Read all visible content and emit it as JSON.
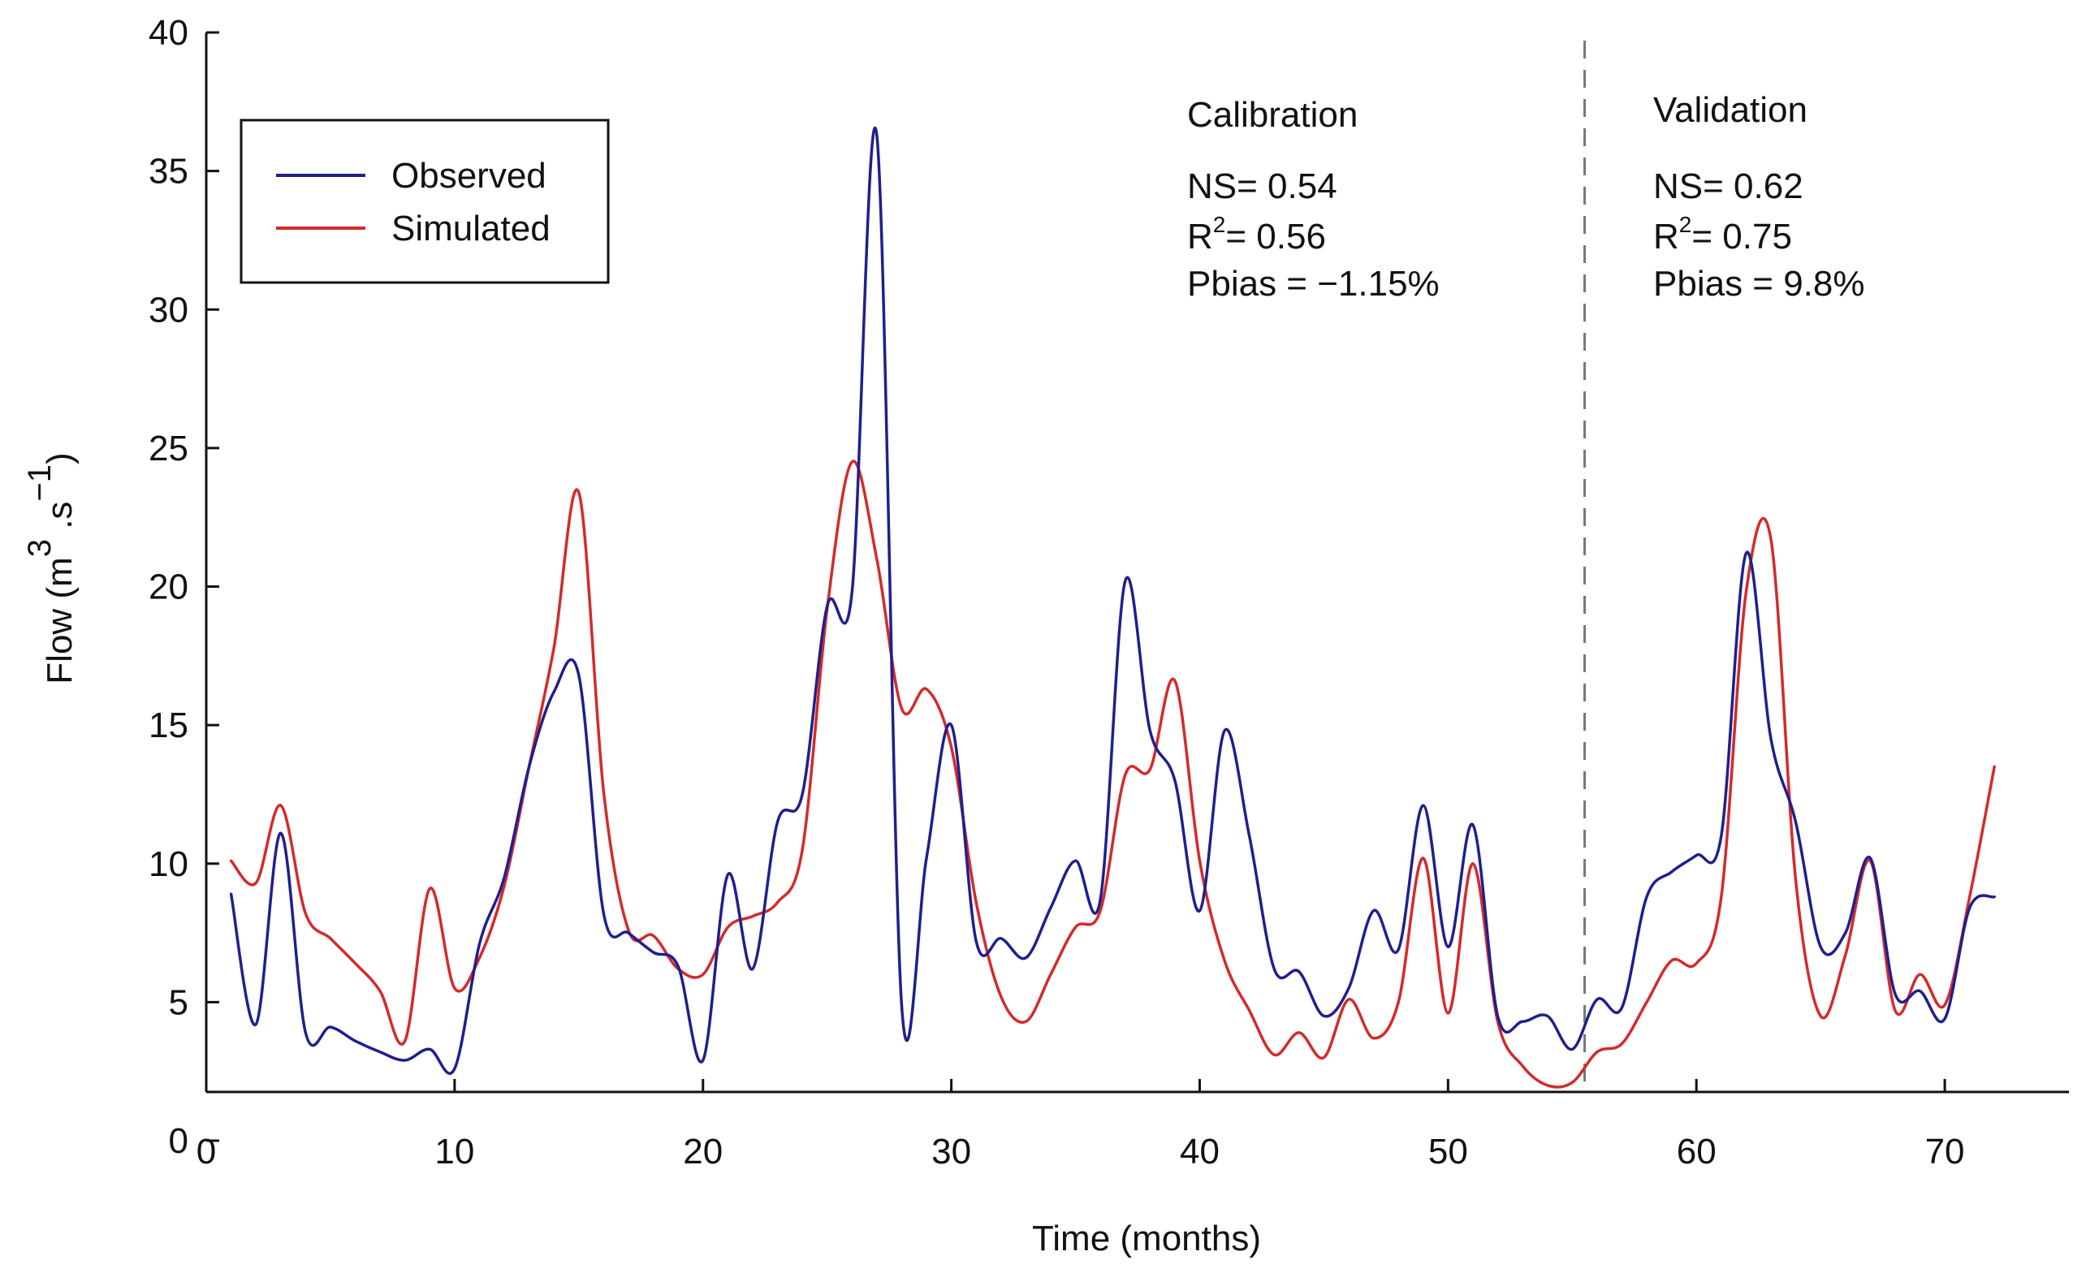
{
  "chart_data": {
    "type": "line",
    "title": "",
    "xlabel": "Time (months)",
    "ylabel": "Flow (m³ .s⁻¹)",
    "ylabel_parts": {
      "prefix": "Flow (m",
      "sup1": "3",
      "mid": " .s",
      "sup2": "−1",
      "suffix": ")"
    },
    "xlim": [
      0,
      75
    ],
    "ylim": [
      0,
      40
    ],
    "xticks": [
      0,
      10,
      20,
      30,
      40,
      50,
      60,
      70
    ],
    "yticks": [
      0,
      5,
      10,
      15,
      20,
      25,
      30,
      35,
      40
    ],
    "split_x": 55.5,
    "legend": {
      "placement": "top-left",
      "entries": [
        {
          "name": "Observed",
          "color": "#1f1f8f"
        },
        {
          "name": "Simulated",
          "color": "#d42a2a"
        }
      ]
    },
    "annotations": {
      "calibration": {
        "title": "Calibration",
        "ns": "NS= 0.54",
        "r2_prefix": "R",
        "r2_sup": "2",
        "r2_value": "= 0.56",
        "pbias": "Pbias = −1.15%"
      },
      "validation": {
        "title": "Validation",
        "ns": "NS= 0.62",
        "r2_prefix": "R",
        "r2_sup": "2",
        "r2_value": "= 0.75",
        "pbias": "Pbias = 9.8%"
      }
    },
    "series": [
      {
        "name": "Observed",
        "color": "#1f1f8f",
        "x": [
          1,
          2,
          3,
          4,
          5,
          6,
          7,
          8,
          9,
          10,
          11,
          12,
          13,
          14,
          15,
          16,
          17,
          18,
          19,
          20,
          21,
          22,
          23,
          24,
          25,
          26,
          27,
          28,
          29,
          30,
          31,
          32,
          33,
          34,
          35,
          36,
          37,
          38,
          39,
          40,
          41,
          42,
          43,
          44,
          45,
          46,
          47,
          48,
          49,
          50,
          51,
          52,
          53,
          54,
          55,
          56,
          57,
          58,
          59,
          60,
          61,
          62,
          63,
          64,
          65,
          66,
          67,
          68,
          69,
          70,
          71,
          72
        ],
        "values": [
          8.9,
          4.2,
          11.1,
          3.9,
          4.1,
          3.6,
          3.2,
          2.9,
          3.3,
          2.6,
          7.1,
          9.5,
          13.5,
          16.2,
          16.8,
          8.2,
          7.5,
          6.8,
          6.3,
          2.9,
          9.6,
          6.2,
          11.5,
          12.5,
          19.3,
          19.8,
          36.3,
          4.9,
          10.2,
          15.0,
          7.2,
          7.3,
          6.6,
          8.4,
          10.1,
          8.7,
          20.2,
          14.8,
          13.0,
          8.3,
          14.8,
          11.0,
          6.2,
          6.1,
          4.5,
          5.5,
          8.3,
          6.9,
          12.1,
          7.0,
          11.4,
          4.5,
          4.3,
          4.5,
          3.3,
          5.1,
          4.8,
          8.8,
          9.7,
          10.3,
          11.0,
          21.2,
          14.5,
          11.5,
          7.0,
          7.5,
          10.2,
          5.3,
          5.4,
          4.4,
          8.4,
          8.8
        ]
      },
      {
        "name": "Simulated",
        "color": "#d42a2a",
        "x": [
          1,
          2,
          3,
          4,
          5,
          6,
          7,
          8,
          9,
          10,
          11,
          12,
          13,
          14,
          15,
          16,
          17,
          18,
          19,
          20,
          21,
          22,
          23,
          24,
          25,
          26,
          27,
          28,
          29,
          30,
          31,
          32,
          33,
          34,
          35,
          36,
          37,
          38,
          39,
          40,
          41,
          42,
          43,
          44,
          45,
          46,
          47,
          48,
          49,
          50,
          51,
          52,
          53,
          54,
          55,
          56,
          57,
          58,
          59,
          60,
          61,
          62,
          63,
          64,
          65,
          66,
          67,
          68,
          69,
          70,
          71,
          72
        ],
        "values": [
          10.1,
          9.3,
          12.1,
          8.2,
          7.3,
          6.4,
          5.4,
          3.6,
          9.1,
          5.5,
          6.6,
          9.2,
          13.5,
          17.8,
          23.4,
          12.6,
          7.6,
          7.4,
          6.2,
          6.0,
          7.7,
          8.1,
          8.6,
          10.5,
          19.2,
          24.5,
          21.0,
          15.6,
          16.3,
          14.2,
          8.6,
          5.2,
          4.3,
          6.0,
          7.7,
          8.3,
          13.2,
          13.4,
          16.6,
          10.1,
          6.5,
          4.7,
          3.1,
          3.9,
          3.0,
          5.1,
          3.7,
          5.0,
          10.2,
          4.6,
          10.0,
          4.3,
          2.7,
          2.0,
          2.1,
          3.2,
          3.5,
          5.0,
          6.5,
          6.4,
          8.8,
          19.8,
          21.7,
          9.4,
          4.5,
          6.7,
          10.1,
          4.7,
          6.0,
          4.9,
          8.8,
          13.5
        ]
      }
    ]
  }
}
